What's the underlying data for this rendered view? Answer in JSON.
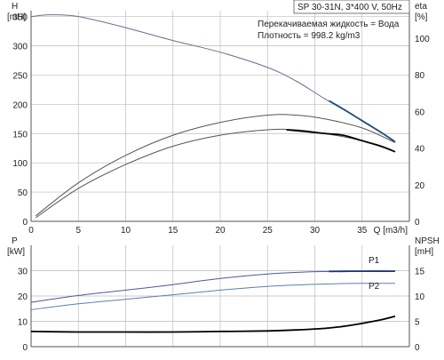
{
  "chart_data": [
    {
      "type": "line",
      "title": "SP 30-31N, 3*400 V, 50Hz",
      "annotations": [
        "Перекачиваемая жидкость = Вода",
        "Плотность = 998.2 kg/m3"
      ],
      "x_axis": {
        "label": "Q [m3/h]",
        "range": [
          0,
          40
        ],
        "ticks": [
          0,
          5,
          10,
          15,
          20,
          25,
          30,
          35
        ]
      },
      "y_left": {
        "label_top": "H",
        "label_unit": "[mH]",
        "range": [
          0,
          360
        ],
        "ticks": [
          0,
          50,
          100,
          150,
          200,
          250,
          300,
          350
        ]
      },
      "y_right": {
        "label_top": "eta",
        "label_unit": "[%]",
        "range": [
          0,
          115
        ],
        "ticks": [
          0,
          20,
          40,
          60,
          80,
          100
        ]
      },
      "grid": true,
      "series": [
        {
          "axis": "left",
          "color": "#6a6f8e",
          "x": [
            0,
            2,
            5,
            10,
            15,
            20,
            25,
            28,
            31,
            35,
            38.5
          ],
          "y": [
            350,
            353,
            350,
            331,
            309,
            289,
            263,
            240,
            210,
            172,
            136
          ]
        },
        {
          "axis": "left",
          "color": "#1f4e79",
          "emphasis": true,
          "x": [
            31.5,
            33,
            35,
            37,
            38.5
          ],
          "y": [
            206,
            192,
            172,
            152,
            136
          ]
        },
        {
          "axis": "right",
          "color": "#555555",
          "x": [
            0.5,
            5,
            10,
            15,
            20,
            25,
            28,
            31,
            35,
            38.5
          ],
          "y": [
            3,
            21,
            36,
            47,
            54,
            58,
            58,
            56,
            51,
            43
          ]
        },
        {
          "axis": "right",
          "color": "#555555",
          "x": [
            0.5,
            5,
            10,
            15,
            20,
            25,
            28,
            31,
            35,
            38.5
          ],
          "y": [
            2,
            18,
            31,
            41,
            47,
            50,
            50,
            48,
            44,
            38
          ]
        },
        {
          "axis": "right",
          "color": "#000000",
          "emphasis": true,
          "x": [
            27,
            31,
            33,
            35,
            37,
            38.5
          ],
          "y": [
            50,
            48,
            47,
            44,
            41,
            38
          ]
        }
      ]
    },
    {
      "type": "line",
      "x_axis": {
        "range": [
          0,
          40
        ],
        "ticks": [
          0,
          5,
          10,
          15,
          20,
          25,
          30,
          35
        ]
      },
      "y_left": {
        "label_top": "P",
        "label_unit": "[kW]",
        "range": [
          0,
          40
        ],
        "ticks": [
          0,
          10,
          20,
          30
        ]
      },
      "y_right": {
        "label_top": "NPSH",
        "label_unit": "[mH]",
        "range": [
          0,
          20
        ],
        "ticks": [
          0,
          5,
          10,
          15
        ]
      },
      "grid": true,
      "series_labels": [
        "P1",
        "P2"
      ],
      "series": [
        {
          "name": "P1",
          "axis": "left",
          "color": "#4a5a9a",
          "x": [
            0,
            5,
            10,
            15,
            20,
            25,
            30,
            35,
            38.5
          ],
          "y": [
            17.5,
            20.2,
            22.3,
            24.5,
            26.9,
            28.7,
            29.6,
            29.8,
            29.8
          ]
        },
        {
          "name": "P1-emphasis",
          "axis": "left",
          "color": "#1f3570",
          "emphasis": true,
          "x": [
            31.5,
            35,
            38.5
          ],
          "y": [
            29.7,
            29.8,
            29.8
          ]
        },
        {
          "name": "P2",
          "axis": "left",
          "color": "#5a7fb0",
          "x": [
            0,
            5,
            10,
            15,
            20,
            25,
            30,
            35,
            38.5
          ],
          "y": [
            14.6,
            16.9,
            18.7,
            20.5,
            22.3,
            23.8,
            24.6,
            25.0,
            25.0
          ]
        },
        {
          "name": "NPSH",
          "axis": "right",
          "color": "#000000",
          "emphasis": true,
          "x": [
            0,
            5,
            10,
            15,
            20,
            25,
            28,
            31,
            33,
            35,
            37,
            38.5
          ],
          "y": [
            3.0,
            2.9,
            2.9,
            2.9,
            3.0,
            3.1,
            3.3,
            3.6,
            4.0,
            4.6,
            5.3,
            6.0
          ]
        }
      ]
    }
  ]
}
